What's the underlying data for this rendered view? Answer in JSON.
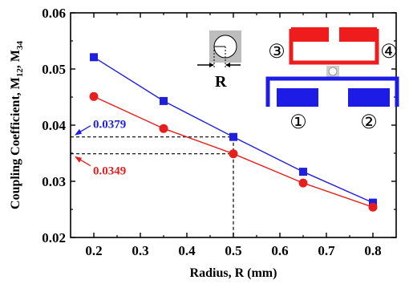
{
  "chart_data": {
    "type": "line",
    "xlabel": "Radius, R (mm)",
    "ylabel": "Coupling Coefficient, M",
    "ylabel_parts": {
      "sub1": "12",
      "sep": ", M",
      "sub2": "34"
    },
    "xlim": [
      0.15,
      0.85
    ],
    "ylim": [
      0.02,
      0.06
    ],
    "x_ticks": [
      "0.2",
      "0.3",
      "0.4",
      "0.5",
      "0.6",
      "0.7",
      "0.8"
    ],
    "x_tick_values": [
      0.2,
      0.3,
      0.4,
      0.5,
      0.6,
      0.7,
      0.8
    ],
    "y_ticks": [
      "0.02",
      "0.03",
      "0.04",
      "0.05",
      "0.06"
    ],
    "y_tick_values": [
      0.02,
      0.03,
      0.04,
      0.05,
      0.06
    ],
    "series": [
      {
        "color": "#1f1fe0",
        "marker": "square",
        "x": [
          0.2,
          0.35,
          0.5,
          0.65,
          0.8
        ],
        "y": [
          0.0521,
          0.0443,
          0.0379,
          0.0317,
          0.0262
        ]
      },
      {
        "color": "#e61e1e",
        "marker": "circle",
        "x": [
          0.2,
          0.35,
          0.5,
          0.65,
          0.8
        ],
        "y": [
          0.0451,
          0.0394,
          0.0349,
          0.0297,
          0.0254
        ]
      }
    ],
    "annotations": [
      {
        "text": "0.0379",
        "color": "#1f1fe0",
        "value": 0.0379
      },
      {
        "text": "0.0349",
        "color": "#e61e1e",
        "value": 0.0349
      }
    ],
    "marked_x": 0.5
  },
  "inset": {
    "r_label": "R",
    "ports": [
      "③",
      "④",
      "①",
      "②"
    ],
    "top_color": "#ee1c1c",
    "bottom_color": "#1c1ce6"
  }
}
